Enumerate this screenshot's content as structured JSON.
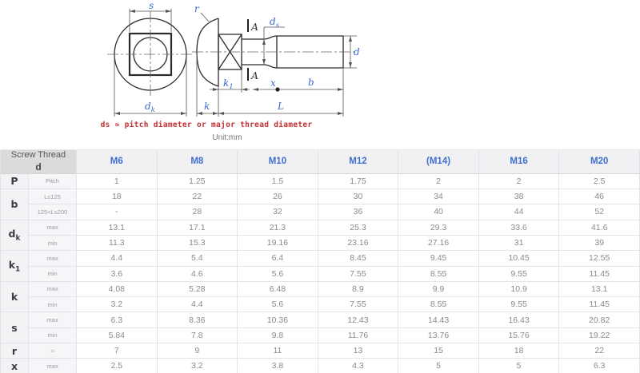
{
  "diagram": {
    "labels": {
      "s": "s",
      "r": "r",
      "a_top": "A",
      "a_bottom": "A",
      "ds": {
        "base": "d",
        "sub": "s"
      },
      "d": "d",
      "k1": {
        "base": "k",
        "sub": "1"
      },
      "k": "k",
      "x": "x",
      "b": "b",
      "L": "L",
      "dk": {
        "base": "d",
        "sub": "k"
      }
    },
    "caption": "ds ≈ pitch diameter or major thread diameter",
    "unit": "Unit:mm",
    "colors": {
      "dimension_label": "#3a6bd0",
      "caption": "#c23030",
      "line": "#2b2b2b"
    }
  },
  "table": {
    "corner": {
      "title": "Screw Thread",
      "subtitle": "d"
    },
    "columns": [
      "M6",
      "M8",
      "M10",
      "M12",
      "(M14)",
      "M16",
      "M20"
    ],
    "groups": [
      {
        "param": {
          "base": "P",
          "sub": ""
        },
        "rows": [
          {
            "sub": "Pitch",
            "values": [
              "1",
              "1.25",
              "1.5",
              "1.75",
              "2",
              "2",
              "2.5"
            ]
          }
        ]
      },
      {
        "param": {
          "base": "b",
          "sub": ""
        },
        "rows": [
          {
            "sub": "L≤125",
            "values": [
              "18",
              "22",
              "26",
              "30",
              "34",
              "38",
              "46"
            ]
          },
          {
            "sub": "125<L≤200",
            "values": [
              "-",
              "28",
              "32",
              "36",
              "40",
              "44",
              "52"
            ]
          }
        ]
      },
      {
        "param": {
          "base": "d",
          "sub": "k"
        },
        "rows": [
          {
            "sub": "max",
            "values": [
              "13.1",
              "17.1",
              "21.3",
              "25.3",
              "29.3",
              "33.6",
              "41.6"
            ]
          },
          {
            "sub": "min",
            "values": [
              "11.3",
              "15.3",
              "19.16",
              "23.16",
              "27.16",
              "31",
              "39"
            ]
          }
        ]
      },
      {
        "param": {
          "base": "k",
          "sub": "1"
        },
        "rows": [
          {
            "sub": "max",
            "values": [
              "4.4",
              "5.4",
              "6.4",
              "8.45",
              "9.45",
              "10.45",
              "12.55"
            ]
          },
          {
            "sub": "min",
            "values": [
              "3.6",
              "4.6",
              "5.6",
              "7.55",
              "8.55",
              "9.55",
              "11.45"
            ]
          }
        ]
      },
      {
        "param": {
          "base": "k",
          "sub": ""
        },
        "rows": [
          {
            "sub": "max",
            "values": [
              "4.08",
              "5.28",
              "6.48",
              "8.9",
              "9.9",
              "10.9",
              "13.1"
            ]
          },
          {
            "sub": "min",
            "values": [
              "3.2",
              "4.4",
              "5.6",
              "7.55",
              "8.55",
              "9.55",
              "11.45"
            ]
          }
        ]
      },
      {
        "param": {
          "base": "s",
          "sub": ""
        },
        "rows": [
          {
            "sub": "max",
            "values": [
              "6.3",
              "8.36",
              "10.36",
              "12.43",
              "14.43",
              "16.43",
              "20.82"
            ]
          },
          {
            "sub": "min",
            "values": [
              "5.84",
              "7.8",
              "9.8",
              "11.76",
              "13.76",
              "15.76",
              "19.22"
            ]
          }
        ]
      },
      {
        "param": {
          "base": "r",
          "sub": ""
        },
        "rows": [
          {
            "sub": "≈",
            "values": [
              "7",
              "9",
              "11",
              "13",
              "15",
              "18",
              "22"
            ]
          }
        ]
      },
      {
        "param": {
          "base": "x",
          "sub": ""
        },
        "rows": [
          {
            "sub": "max",
            "values": [
              "2.5",
              "3.2",
              "3.8",
              "4.3",
              "5",
              "5",
              "6.3"
            ]
          }
        ]
      }
    ]
  }
}
